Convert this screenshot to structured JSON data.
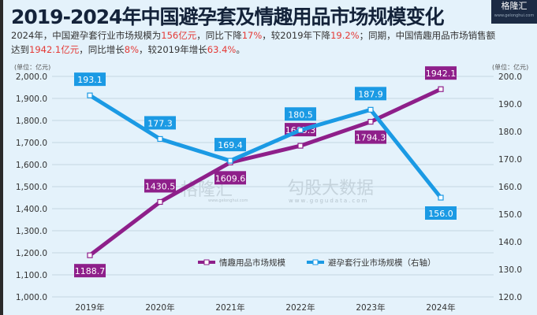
{
  "title": "2019-2024年中国避孕套及情趣用品市场规模变化",
  "logo": {
    "name": "格隆汇",
    "url": "www.gelonghui.com"
  },
  "watermark": {
    "brand": "格隆汇",
    "url1": "www.gelonghui.com",
    "brand2": "勾股大数据",
    "url2": "www.gogudata.com"
  },
  "subtitle": {
    "p1": "2024年，中国避孕套行业市场规模为",
    "v1": "156亿元",
    "p2": "，同比下降",
    "v2": "17%",
    "p3": "，较2019年下降",
    "v3": "19.2%",
    "p4": "；同期，中国情趣用品市场销售额达到",
    "v4": "1942.1亿元",
    "p5": "，同比增长",
    "v5": "8%",
    "p6": "，较2019年增长",
    "v6": "63.4%",
    "p7": "。"
  },
  "colors": {
    "purple": "#8e1f8a",
    "blue": "#1b9ae4"
  },
  "chart_data": {
    "type": "line",
    "title": "2019-2024年中国避孕套及情趣用品市场规模变化",
    "categories": [
      "2019年",
      "2020年",
      "2021年",
      "2022年",
      "2023年",
      "2024年"
    ],
    "yunit_left": "(单位：亿元)",
    "yunit_right": "(单位：亿元)",
    "ylim_left": [
      1000,
      2000
    ],
    "ylim_right": [
      120,
      200
    ],
    "yticks_left": [
      "1,000.0",
      "1,100.0",
      "1,200.0",
      "1,300.0",
      "1,400.0",
      "1,500.0",
      "1,600.0",
      "1,700.0",
      "1,800.0",
      "1,900.0",
      "2,000.0"
    ],
    "yticks_right": [
      "120.0",
      "130.0",
      "140.0",
      "150.0",
      "160.0",
      "170.0",
      "180.0",
      "190.0",
      "200.0"
    ],
    "series": [
      {
        "name": "情趣用品市场规模",
        "axis": "left",
        "values": [
          1188.7,
          1430.5,
          1609.6,
          1685.3,
          1794.3,
          1942.1
        ],
        "labels": [
          "1188.7",
          "1430.5",
          "1609.6",
          "1685.3",
          "1794.3",
          "1942.1"
        ]
      },
      {
        "name": "避孕套行业市场规模（右轴）",
        "axis": "right",
        "values": [
          193.1,
          177.3,
          169.4,
          180.5,
          187.9,
          156.0
        ],
        "labels": [
          "193.1",
          "177.3",
          "169.4",
          "180.5",
          "187.9",
          "156.0"
        ]
      }
    ],
    "legend": "bottom",
    "grid": true
  }
}
